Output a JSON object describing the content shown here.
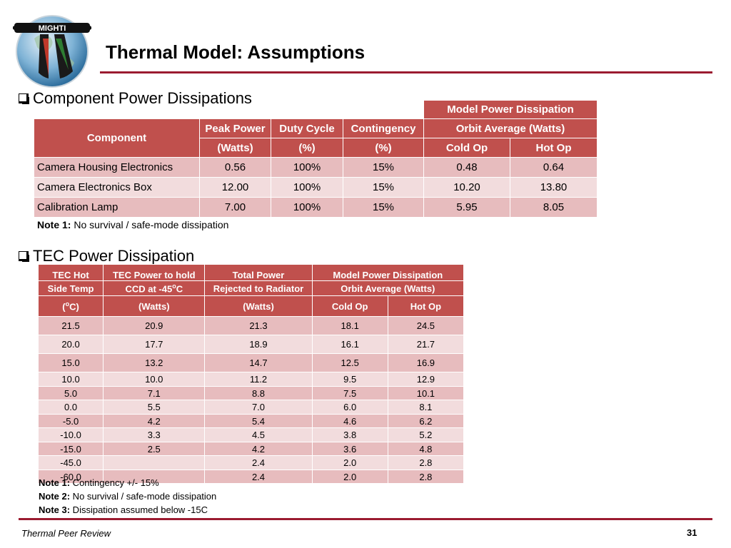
{
  "logo": {
    "text": "MIGHTI"
  },
  "slide": {
    "title": "Thermal Model:  Assumptions"
  },
  "section1": {
    "heading": "Component Power Dissipations",
    "headers": {
      "component": "Component",
      "peak_power_1": "Peak Power",
      "peak_power_2": "(Watts)",
      "duty_cycle_1": "Duty Cycle",
      "duty_cycle_2": "(%)",
      "contingency_1": "Contingency",
      "contingency_2": "(%)",
      "model_1": "Model  Power Dissipation",
      "model_2": "Orbit Average (Watts)",
      "cold_op": "Cold Op",
      "hot_op": "Hot Op"
    },
    "rows": [
      {
        "component": "Camera Housing Electronics",
        "peak": "0.56",
        "duty": "100%",
        "contingency": "15%",
        "cold": "0.48",
        "hot": "0.64"
      },
      {
        "component": "Camera Electronics Box",
        "peak": "12.00",
        "duty": "100%",
        "contingency": "15%",
        "cold": "10.20",
        "hot": "13.80"
      },
      {
        "component": "Calibration Lamp",
        "peak": "7.00",
        "duty": "100%",
        "contingency": "15%",
        "cold": "5.95",
        "hot": "8.05"
      }
    ],
    "note_label": "Note 1:",
    "note_text": " No survival / safe-mode dissipation"
  },
  "section2": {
    "heading": "TEC Power Dissipation",
    "headers": {
      "tec_hot_1": "TEC Hot",
      "tec_hot_2": "Side Temp",
      "tec_hot_3a": "(",
      "tec_hot_3sup": "o",
      "tec_hot_3b": "C)",
      "tec_power_1": "TEC Power to hold",
      "tec_power_2a": "CCD at -45",
      "tec_power_2sup": "o",
      "tec_power_2b": "C",
      "tec_power_3": "(Watts)",
      "total_1": "Total Power",
      "total_2": "Rejected to Radiator",
      "total_3": "(Watts)",
      "model_1": "Model Power Dissipation",
      "model_2": "Orbit Average (Watts)",
      "cold_op": "Cold Op",
      "hot_op": "Hot Op"
    },
    "rows": [
      {
        "temp": "21.5",
        "tec": "20.9",
        "total": "21.3",
        "cold": "18.1",
        "hot": "24.5"
      },
      {
        "temp": "20.0",
        "tec": "17.7",
        "total": "18.9",
        "cold": "16.1",
        "hot": "21.7"
      },
      {
        "temp": "15.0",
        "tec": "13.2",
        "total": "14.7",
        "cold": "12.5",
        "hot": "16.9"
      },
      {
        "temp": "10.0",
        "tec": "10.0",
        "total": "11.2",
        "cold": "9.5",
        "hot": "12.9"
      },
      {
        "temp": "5.0",
        "tec": "7.1",
        "total": "8.8",
        "cold": "7.5",
        "hot": "10.1"
      },
      {
        "temp": "0.0",
        "tec": "5.5",
        "total": "7.0",
        "cold": "6.0",
        "hot": "8.1"
      },
      {
        "temp": "-5.0",
        "tec": "4.2",
        "total": "5.4",
        "cold": "4.6",
        "hot": "6.2"
      },
      {
        "temp": "-10.0",
        "tec": "3.3",
        "total": "4.5",
        "cold": "3.8",
        "hot": "5.2"
      },
      {
        "temp": "-15.0",
        "tec": "2.5",
        "total": "4.2",
        "cold": "3.6",
        "hot": "4.8"
      },
      {
        "temp": "-45.0",
        "tec": "",
        "total": "2.4",
        "cold": "2.0",
        "hot": "2.8"
      },
      {
        "temp": "-60.0",
        "tec": "",
        "total": "2.4",
        "cold": "2.0",
        "hot": "2.8"
      }
    ],
    "notes": [
      {
        "label": "Note 1:",
        "text": "  Contingency +/- 15%"
      },
      {
        "label": "Note 2:",
        "text": " No survival / safe-mode dissipation"
      },
      {
        "label": "Note 3:",
        "text": " Dissipation assumed below -15C"
      }
    ]
  },
  "footer": {
    "text": "Thermal Peer Review",
    "page": "31"
  },
  "colors": {
    "accent": "#9b1b30",
    "header": "#c0504d",
    "row_a": "#e7bcbe",
    "row_b": "#f2dcdd"
  }
}
